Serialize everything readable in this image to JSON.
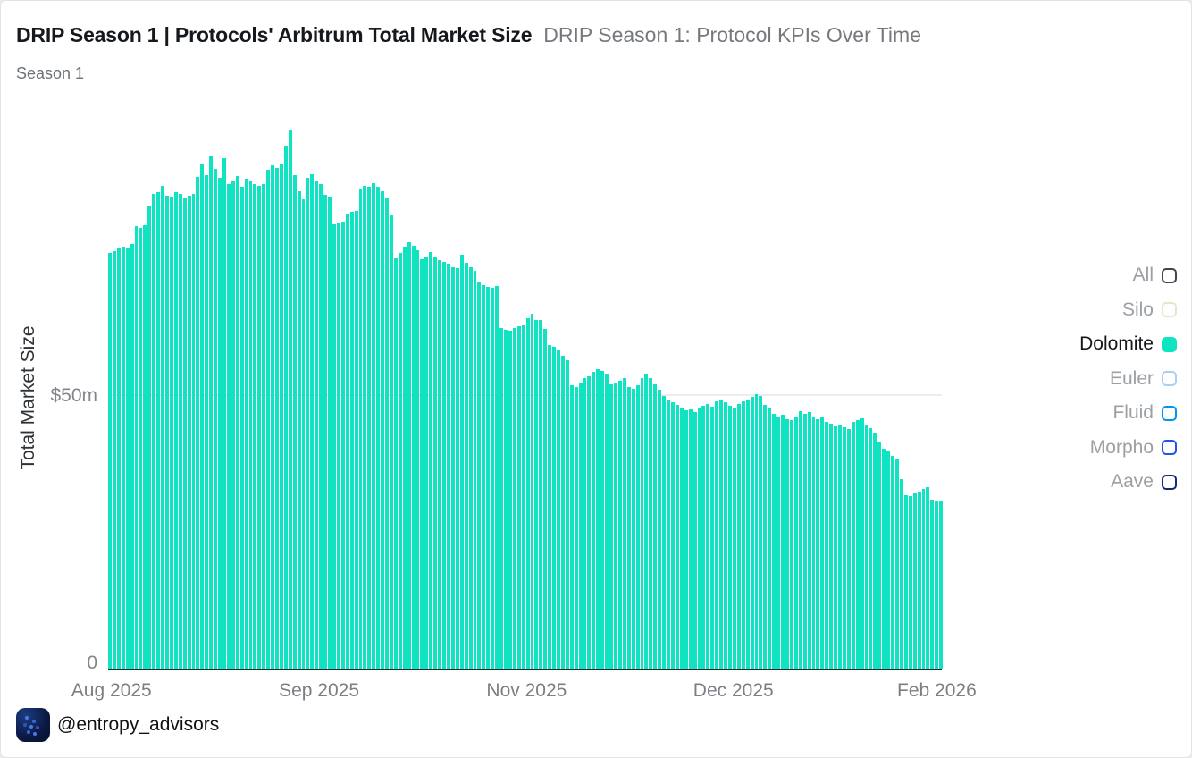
{
  "header": {
    "title": "DRIP Season 1 | Protocols' Arbitrum Total Market Size",
    "secondary_title": "DRIP Season 1: Protocol KPIs Over Time",
    "subtitle": "Season 1"
  },
  "chart_data": {
    "type": "bar",
    "title": "DRIP Season 1 | Protocols' Arbitrum Total Market Size",
    "xlabel": "",
    "ylabel": "Total Market Size",
    "unit": "$m",
    "ylim": [
      0,
      100
    ],
    "grid": "horizontal-at-50m-only",
    "legend_position": "right",
    "series_name": "Dolomite",
    "y_ticks": [
      {
        "value": 0,
        "label": "0"
      },
      {
        "value": 50,
        "label": "$50m"
      }
    ],
    "gridline_values": [
      50
    ],
    "x_tick_labels": [
      "Aug 2025",
      "Sep 2025",
      "Nov 2025",
      "Dec 2025",
      "Feb 2026"
    ],
    "x_tick_positions": [
      0.004,
      0.253,
      0.502,
      0.75,
      0.994
    ],
    "x_range": [
      "Aug 2025",
      "Feb 2026"
    ],
    "values_unit": "million USD, daily Total Market Size",
    "values": [
      76.2,
      76.6,
      77.0,
      77.4,
      77.2,
      77.8,
      81.1,
      80.9,
      81.3,
      84.8,
      87.0,
      87.3,
      88.5,
      86.8,
      86.6,
      87.4,
      87.0,
      86.4,
      86.8,
      87.0,
      90.1,
      92.6,
      90.5,
      94.0,
      91.7,
      90.0,
      93.6,
      88.9,
      89.5,
      90.3,
      88.3,
      89.9,
      89.3,
      88.8,
      88.5,
      88.9,
      91.5,
      92.3,
      91.8,
      92.6,
      95.9,
      98.8,
      90.5,
      87.5,
      86.0,
      90.0,
      90.6,
      89.3,
      88.9,
      86.9,
      86.5,
      81.4,
      81.6,
      82.0,
      83.5,
      83.8,
      84.0,
      87.8,
      88.6,
      88.3,
      89.0,
      88.4,
      87.6,
      86.2,
      83.3,
      75.2,
      76.2,
      77.4,
      78.2,
      77.6,
      76.8,
      75.1,
      75.5,
      76.4,
      75.6,
      75.0,
      74.6,
      74.2,
      73.6,
      73.4,
      75.9,
      74.4,
      73.6,
      73.0,
      71.0,
      70.3,
      70.0,
      69.8,
      70.2,
      62.5,
      62.2,
      62.0,
      62.4,
      62.8,
      63.0,
      64.2,
      65.1,
      64.0,
      63.9,
      62.3,
      59.3,
      59.0,
      58.5,
      57.4,
      56.6,
      52.0,
      51.6,
      52.5,
      53.3,
      53.6,
      54.4,
      54.9,
      54.6,
      54.1,
      52.1,
      52.5,
      52.8,
      53.3,
      51.6,
      51.3,
      52.0,
      53.3,
      54.1,
      53.3,
      52.1,
      51.1,
      50.0,
      49.2,
      48.9,
      48.3,
      47.8,
      47.3,
      47.6,
      47.0,
      47.8,
      48.2,
      48.6,
      48.0,
      49.0,
      49.4,
      48.8,
      48.2,
      47.9,
      48.6,
      49.0,
      49.4,
      49.8,
      50.4,
      50.0,
      48.4,
      47.7,
      46.8,
      46.2,
      46.5,
      45.8,
      45.5,
      46.0,
      47.2,
      46.8,
      47.0,
      46.0,
      45.7,
      46.2,
      45.2,
      44.9,
      44.5,
      44.7,
      44.3,
      44.0,
      45.3,
      45.6,
      45.9,
      44.6,
      44.1,
      43.2,
      41.5,
      40.3,
      39.8,
      39.0,
      38.4,
      34.8,
      31.8,
      31.6,
      32.2,
      32.5,
      33.0,
      33.3,
      31.0,
      30.9,
      30.7
    ]
  },
  "legend": {
    "items": [
      {
        "label": "All",
        "color": "#3f4652",
        "filled": false,
        "active": false
      },
      {
        "label": "Silo",
        "color": "#e9e5cd",
        "filled": false,
        "active": false
      },
      {
        "label": "Dolomite",
        "color": "#0ee4c0",
        "filled": true,
        "active": true
      },
      {
        "label": "Euler",
        "color": "#a9cff2",
        "filled": false,
        "active": false
      },
      {
        "label": "Fluid",
        "color": "#0096f0",
        "filled": false,
        "active": false
      },
      {
        "label": "Morpho",
        "color": "#2153e8",
        "filled": false,
        "active": false
      },
      {
        "label": "Aave",
        "color": "#16267d",
        "filled": false,
        "active": false
      }
    ]
  },
  "footer": {
    "handle": "@entropy_advisors"
  },
  "colors": {
    "bar": "#0fe3c2",
    "accent": "#0ee4c0",
    "grid": "#ececec",
    "axis_line": "#20242a",
    "title_text": "#15181c",
    "muted_text": "#75797e",
    "tick_text": "#7b7f84"
  }
}
